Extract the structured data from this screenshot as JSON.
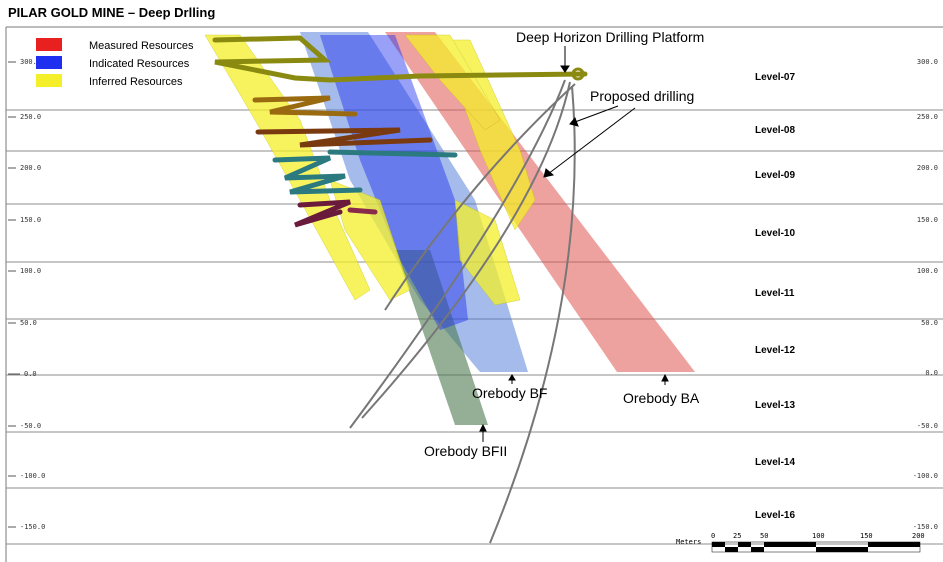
{
  "title": "PILAR GOLD MINE – Deep Drlling",
  "legend": [
    {
      "label": "Measured Resources",
      "color": "#e8201f"
    },
    {
      "label": "Indicated Resources",
      "color": "#1f2ff0"
    },
    {
      "label": "Inferred Resources",
      "color": "#f5ef2a"
    }
  ],
  "elevations": {
    "left": [
      "300.",
      "250.0",
      "200.0",
      "150.0",
      "100.0",
      "50.0",
      "0.0",
      "-50.0",
      "-100.0",
      "-150.0"
    ],
    "right": [
      "300.0",
      "250.0",
      "200.0",
      "150.0",
      "100.0",
      "50.0",
      "0.0",
      "-50.0",
      "-100.0",
      "-150.0"
    ]
  },
  "levels": [
    "Level-07",
    "Level-08",
    "Level-09",
    "Level-10",
    "Level-11",
    "Level-12",
    "Level-13",
    "Level-14",
    "Level-16"
  ],
  "annotations": {
    "platform": "Deep Horizon Drilling Platform",
    "proposed": "Proposed drilling",
    "orebody_bf": "Orebody BF",
    "orebody_ba": "Orebody BA",
    "orebody_bfii": "Orebody BFII"
  },
  "scale_bar": {
    "unit_label": "Meters",
    "ticks": [
      "0",
      "25",
      "50",
      "100",
      "150",
      "200"
    ]
  },
  "colors": {
    "grid": "#7a7a7a",
    "measured": "#e8201f",
    "indicated": "#1f2ff0",
    "inferred": "#f5ef2a",
    "bf_body": "#4a78d8",
    "bfii_body": "#4f7a52",
    "ba_body": "#e05550",
    "drillhole": "#777777"
  }
}
